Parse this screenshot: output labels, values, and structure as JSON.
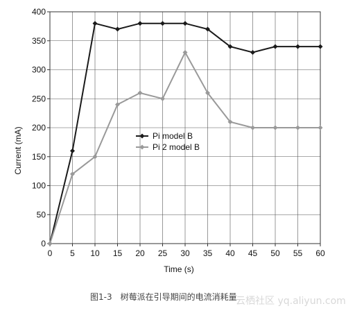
{
  "chart_data": {
    "type": "line",
    "title": "",
    "xlabel": "Time (s)",
    "ylabel": "Current (mA)",
    "x": [
      0,
      5,
      10,
      15,
      20,
      25,
      30,
      35,
      40,
      45,
      50,
      55,
      60
    ],
    "xlim": [
      0,
      60
    ],
    "ylim": [
      0,
      400
    ],
    "xticks": [
      "0",
      "5",
      "10",
      "15",
      "20",
      "25",
      "30",
      "35",
      "40",
      "45",
      "50",
      "55",
      "60"
    ],
    "yticks": [
      "0",
      "50",
      "100",
      "150",
      "200",
      "250",
      "300",
      "350",
      "400"
    ],
    "grid": true,
    "legend_position": "center-left",
    "series": [
      {
        "name": "Pi model B",
        "color": "#1a1a1a",
        "marker": "diamond",
        "values": [
          0,
          160,
          380,
          370,
          380,
          380,
          380,
          370,
          340,
          330,
          340,
          340,
          340
        ]
      },
      {
        "name": "Pi 2 model B",
        "color": "#999999",
        "marker": "diamond",
        "values": [
          0,
          120,
          150,
          240,
          260,
          250,
          330,
          260,
          210,
          200,
          200,
          200,
          200
        ]
      }
    ]
  },
  "caption": "图1-3　树莓派在引导期间的电流消耗量",
  "watermark": "云栖社区 yq.aliyun.com"
}
